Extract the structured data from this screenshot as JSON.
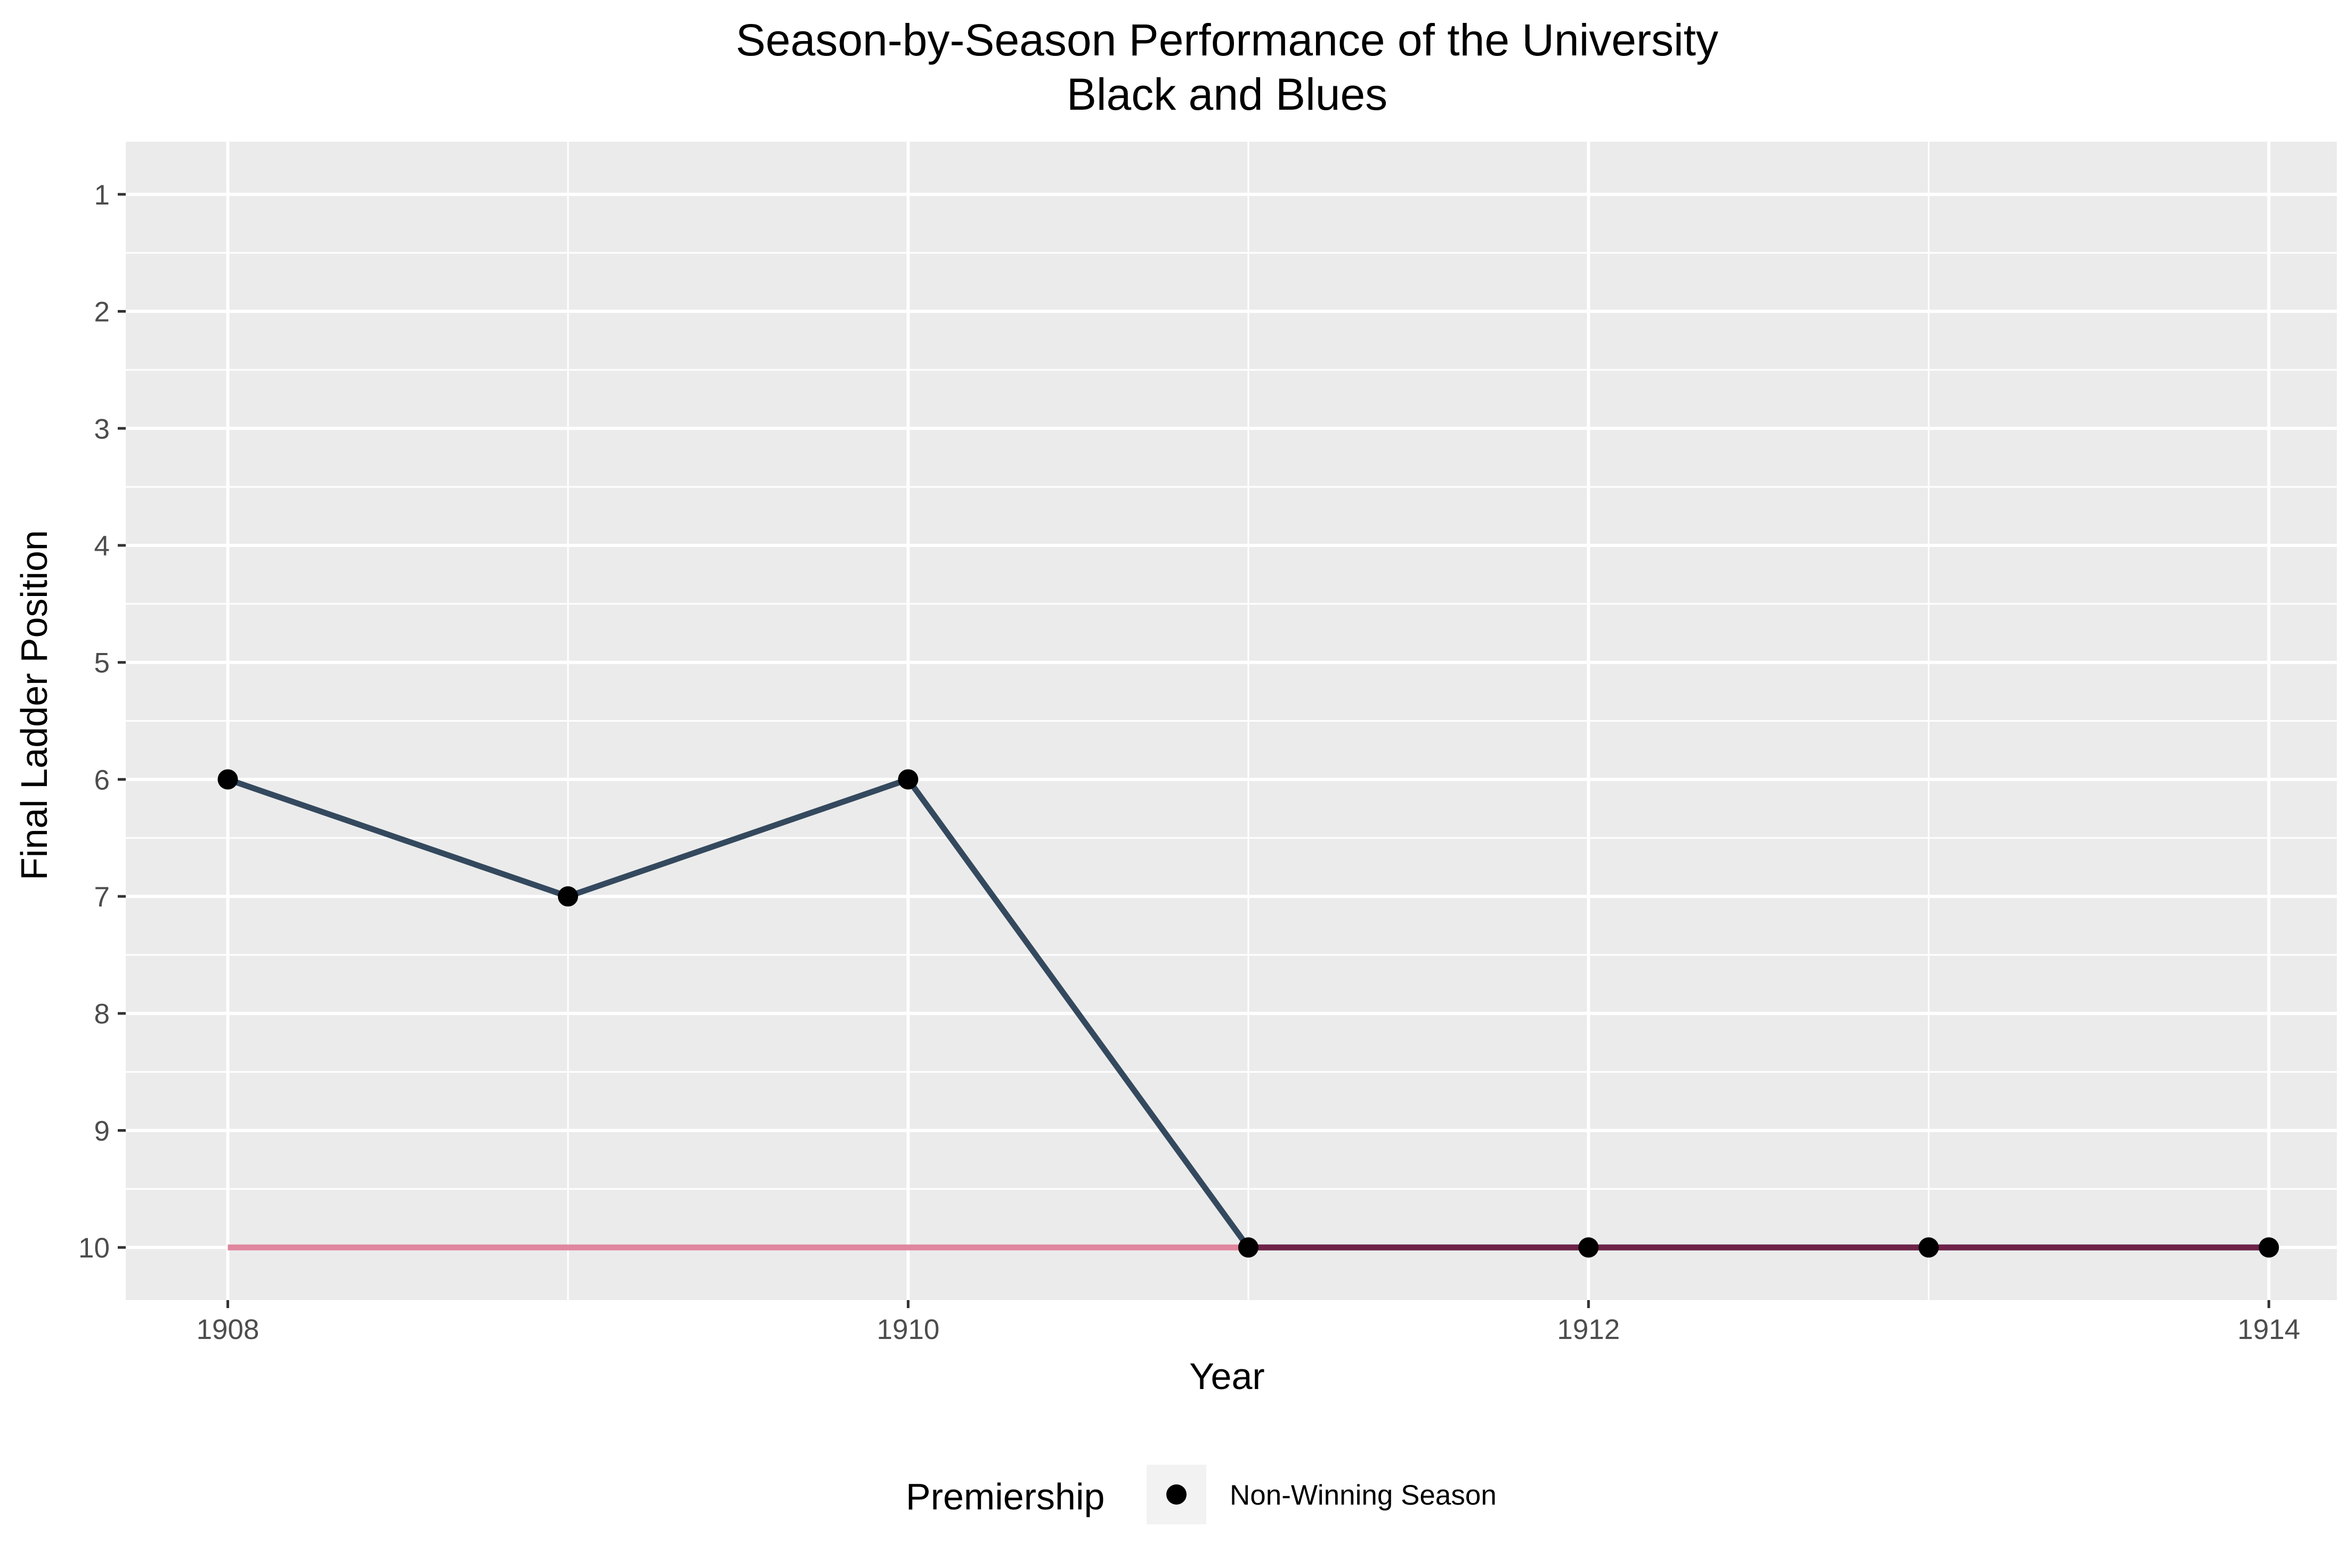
{
  "chart_data": {
    "type": "line",
    "title_lines": [
      "Season-by-Season Performance of the University",
      "Black and Blues"
    ],
    "xlabel": "Year",
    "ylabel": "Final Ladder Position",
    "x_ticks": [
      1908,
      1910,
      1912,
      1914
    ],
    "x_tick_labels": [
      "1908",
      "1910",
      "1912",
      "1914"
    ],
    "y_ticks": [
      1,
      2,
      3,
      4,
      5,
      6,
      7,
      8,
      9,
      10
    ],
    "y_tick_labels": [
      "1",
      "2",
      "3",
      "4",
      "5",
      "6",
      "7",
      "8",
      "9",
      "10"
    ],
    "xlim": [
      1907.7,
      1914.2
    ],
    "ylim": [
      0.55,
      10.45
    ],
    "y_reversed": true,
    "grid": true,
    "legend_position": "bottom",
    "legend": {
      "title": "Premiership",
      "entries": [
        {
          "label": "Non-Winning Season",
          "color": "#000000"
        }
      ]
    },
    "series": [
      {
        "role": "positions",
        "color": "#34495e",
        "x": [
          1908,
          1909,
          1910,
          1911,
          1912,
          1913,
          1914
        ],
        "y": [
          6,
          7,
          6,
          10,
          10,
          10,
          10
        ]
      },
      {
        "role": "bottom-reference",
        "color": "#e0869e",
        "x": [
          1908,
          1911
        ],
        "y": [
          10,
          10
        ]
      },
      {
        "role": "bottom-highlight",
        "color": "#6e2248",
        "x": [
          1911,
          1914
        ],
        "y": [
          10,
          10
        ]
      }
    ],
    "points": {
      "color": "#000000",
      "x": [
        1908,
        1909,
        1910,
        1911,
        1912,
        1913,
        1914
      ],
      "y": [
        6,
        7,
        6,
        10,
        10,
        10,
        10
      ]
    },
    "colors": {
      "panel": "#ebebeb",
      "grid_major": "#ffffff",
      "tick_text": "#4d4d4d",
      "legend_key_bg": "#f2f2f2"
    }
  }
}
